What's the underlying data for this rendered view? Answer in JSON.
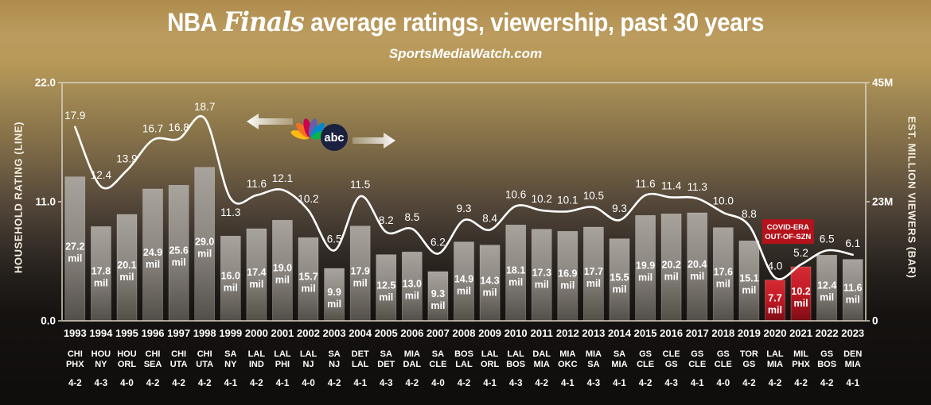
{
  "header": {
    "title_prefix": "NBA",
    "title_script": "Finals",
    "title_suffix": "average ratings, viewership, past 30 years",
    "subtitle": "SportsMediaWatch.com"
  },
  "networks": {
    "nbc_name": "NBC peacock",
    "abc_label": "abc"
  },
  "covid_note": {
    "line1": "COVID-ERA",
    "line2": "OUT-OF-SZN"
  },
  "colors": {
    "background_gold": "#bc9c5f",
    "background_dark": "#0f0d0c",
    "bar_gray_top": "#a8a39c",
    "bar_gray_mid": "#8b867f",
    "bar_gray_bottom": "#524e48",
    "bar_red_top": "#d62b35",
    "bar_red_mid": "#c01823",
    "bar_red_bottom": "#7c0d15",
    "line": "#ffffff",
    "covid_box": "#b5121b",
    "plot_border": "#d9d2c2",
    "text": "#ffffff"
  },
  "chart_data": {
    "type": "bar",
    "title": "NBA Finals average ratings, viewership, past 30 years",
    "subtitle": "SportsMediaWatch.com",
    "x": [
      1993,
      1994,
      1995,
      1996,
      1997,
      1998,
      1999,
      2000,
      2001,
      2002,
      2003,
      2004,
      2005,
      2006,
      2007,
      2008,
      2009,
      2010,
      2011,
      2012,
      2013,
      2014,
      2015,
      2016,
      2017,
      2018,
      2019,
      2020,
      2021,
      2022,
      2023
    ],
    "series": [
      {
        "name": "Household rating (line)",
        "type": "line",
        "values": [
          17.9,
          12.4,
          13.9,
          16.7,
          16.8,
          18.7,
          11.3,
          11.6,
          12.1,
          10.2,
          6.5,
          11.5,
          8.2,
          8.5,
          6.2,
          9.3,
          8.4,
          10.6,
          10.2,
          10.1,
          10.5,
          9.3,
          11.6,
          11.4,
          11.3,
          10.0,
          8.8,
          4.0,
          5.2,
          6.5,
          6.1
        ]
      },
      {
        "name": "Est. million viewers (bar)",
        "type": "bar",
        "values": [
          27.2,
          17.8,
          20.1,
          24.9,
          25.6,
          29.0,
          16.0,
          17.4,
          19.0,
          15.7,
          9.9,
          17.9,
          12.5,
          13.0,
          9.3,
          14.9,
          14.3,
          18.1,
          17.3,
          16.9,
          17.7,
          15.5,
          19.9,
          20.2,
          20.4,
          17.6,
          15.1,
          7.7,
          10.2,
          12.4,
          11.6
        ],
        "highlight_years": [
          2020,
          2021
        ]
      }
    ],
    "matchups": [
      "CHI/PHX",
      "HOU/NY",
      "HOU/ORL",
      "CHI/SEA",
      "CHI/UTA",
      "CHI/UTA",
      "SA/NY",
      "LAL/IND",
      "LAL/PHI",
      "LAL/NJ",
      "SA/NJ",
      "DET/LAL",
      "SA/DET",
      "MIA/DAL",
      "SA/CLE",
      "BOS/LAL",
      "LAL/ORL",
      "LAL/BOS",
      "DAL/MIA",
      "MIA/OKC",
      "MIA/SA",
      "SA/MIA",
      "GS/CLE",
      "CLE/GS",
      "GS/CLE",
      "GS/CLE",
      "TOR/GS",
      "LAL/MIA",
      "MIL/PHX",
      "GS/BOS",
      "DEN/MIA"
    ],
    "series_results": [
      "4-2",
      "4-3",
      "4-0",
      "4-2",
      "4-2",
      "4-2",
      "4-1",
      "4-2",
      "4-1",
      "4-0",
      "4-2",
      "4-1",
      "4-3",
      "4-2",
      "4-0",
      "4-2",
      "4-1",
      "4-3",
      "4-2",
      "4-1",
      "4-3",
      "4-1",
      "4-2",
      "4-3",
      "4-1",
      "4-0",
      "4-2",
      "4-2",
      "4-2",
      "4-2",
      "4-1"
    ],
    "ylabel_left": "HOUSEHOLD RATING (LINE)",
    "ylabel_right": "EST. MILLION VIEWERS (BAR)",
    "yticks_left": [
      "22.0",
      "11.0",
      "0.0"
    ],
    "yticks_right": [
      "45M",
      "23M",
      "0"
    ],
    "ylim_left": [
      0,
      22
    ],
    "ylim_right": [
      0,
      45
    ],
    "bar_unit": "mil",
    "grid": "off",
    "rating_label_below_years": [
      1999
    ]
  }
}
